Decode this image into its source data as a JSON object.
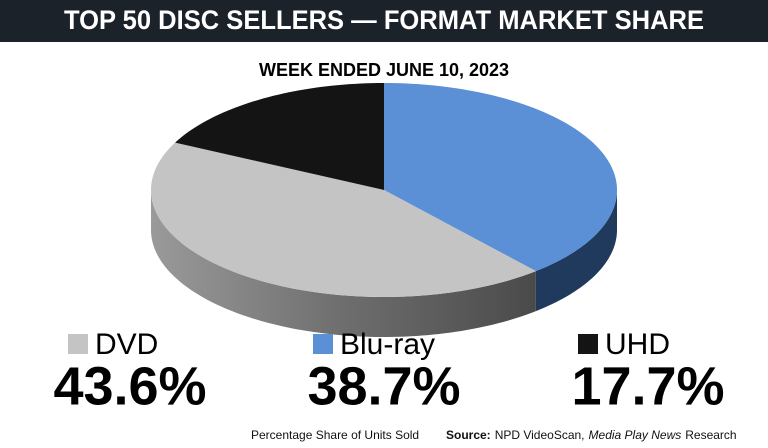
{
  "chart_data": {
    "type": "pie3d",
    "title": "TOP 50 DISC SELLERS — FORMAT MARKET SHARE",
    "subtitle": "WEEK ENDED JUNE 10, 2023",
    "categories": [
      "DVD",
      "Blu-ray",
      "UHD"
    ],
    "values": [
      43.6,
      38.7,
      17.7
    ],
    "value_labels": [
      "43.6%",
      "38.7%",
      "17.7%"
    ],
    "colors": [
      "#c4c4c4",
      "#5b8fd6",
      "#141414"
    ],
    "side_colors": [
      "#8a8a8a",
      "#203a5e",
      "#0a0a0a"
    ],
    "slice_order": [
      "Blu-ray",
      "DVD",
      "UHD"
    ],
    "note": "Percentage Share of Units Sold",
    "source": {
      "label": "Source:",
      "text": "NPD VideoScan,",
      "publication": "Media Play News",
      "suffix": "Research"
    }
  }
}
